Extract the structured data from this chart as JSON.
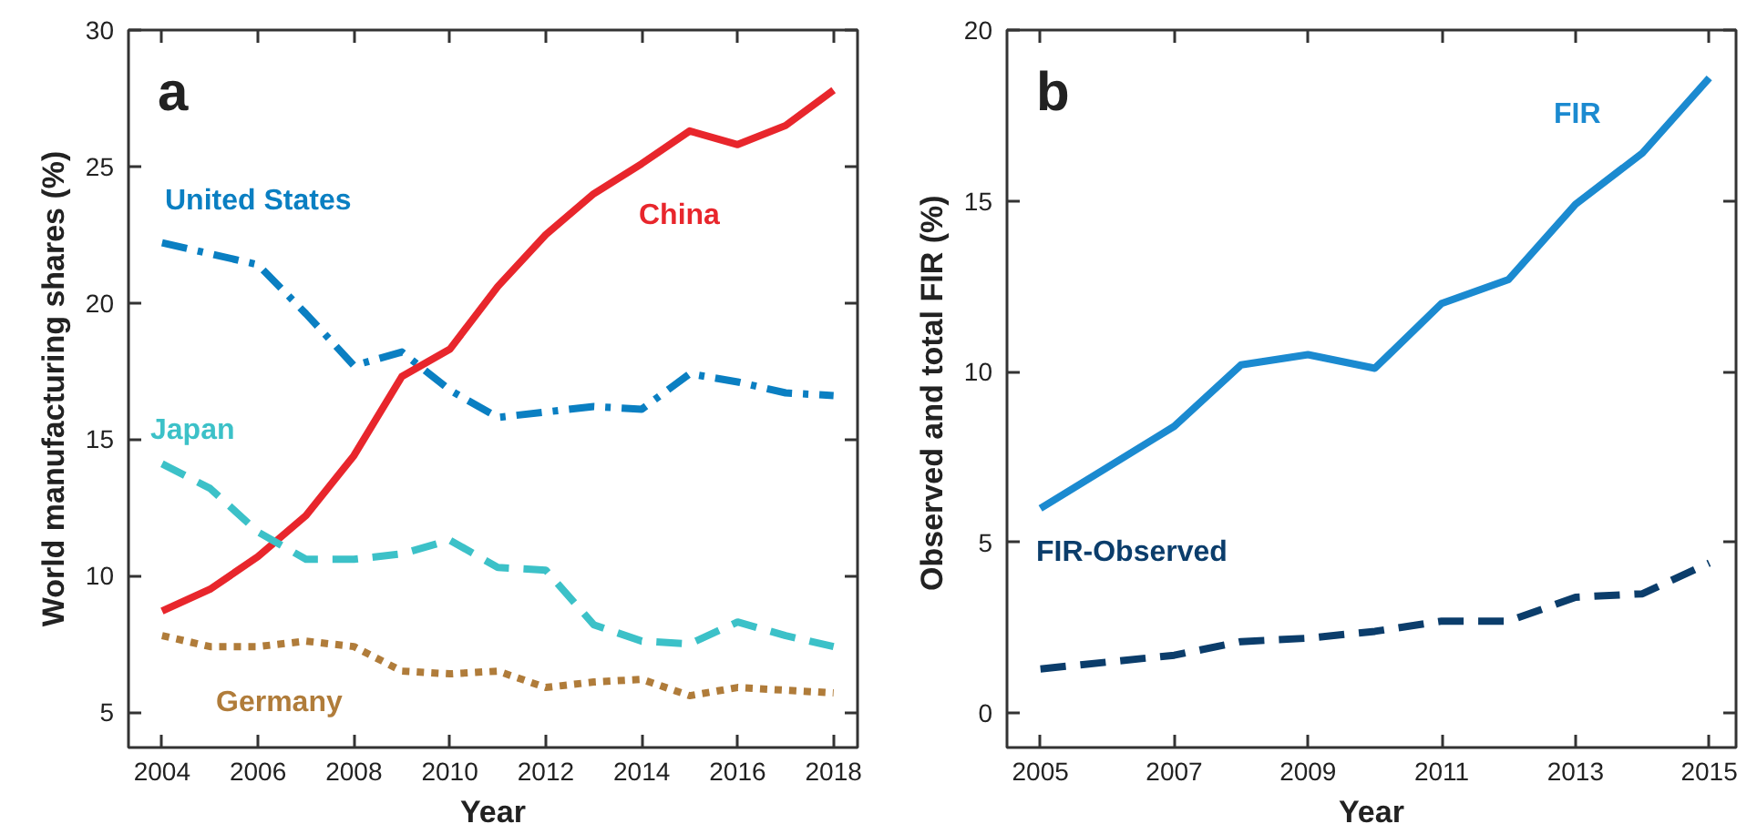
{
  "chart_data": [
    {
      "type": "line",
      "title": "a",
      "xlabel": "Year",
      "ylabel": "World manufacturing shares (%)",
      "x": [
        2004,
        2005,
        2006,
        2007,
        2008,
        2009,
        2010,
        2011,
        2012,
        2013,
        2014,
        2015,
        2016,
        2017,
        2018
      ],
      "series": [
        {
          "name": "United States",
          "color": "#0a7fc2",
          "line_style": "dashdot",
          "values": [
            22.2,
            21.8,
            21.4,
            19.6,
            17.7,
            18.2,
            16.8,
            15.8,
            16.0,
            16.2,
            16.1,
            17.4,
            17.1,
            16.7,
            16.6
          ]
        },
        {
          "name": "China",
          "color": "#e8262c",
          "line_style": "solid",
          "values": [
            8.7,
            9.5,
            10.7,
            12.2,
            14.4,
            17.3,
            18.3,
            20.6,
            22.5,
            24.0,
            25.1,
            26.3,
            25.8,
            26.5,
            27.8
          ]
        },
        {
          "name": "Japan",
          "color": "#3cc1c8",
          "line_style": "dashed",
          "values": [
            14.1,
            13.2,
            11.6,
            10.6,
            10.6,
            10.8,
            11.3,
            10.3,
            10.2,
            8.2,
            7.6,
            7.5,
            8.3,
            7.8,
            7.4
          ]
        },
        {
          "name": "Germany",
          "color": "#b07c3a",
          "line_style": "dotted",
          "values": [
            7.8,
            7.4,
            7.4,
            7.6,
            7.4,
            6.5,
            6.4,
            6.5,
            5.9,
            6.1,
            6.2,
            5.6,
            5.9,
            5.8,
            5.7
          ]
        }
      ],
      "xlim": [
        2003.3,
        2018.5
      ],
      "ylim": [
        3.7,
        30
      ],
      "xticks": [
        2004,
        2006,
        2008,
        2010,
        2012,
        2014,
        2016,
        2018
      ],
      "yticks": [
        5,
        10,
        15,
        20,
        25,
        30
      ],
      "grid": false,
      "legend": false
    },
    {
      "type": "line",
      "title": "b",
      "xlabel": "Year",
      "ylabel": "Observed and total FIR  (%)",
      "x": [
        2005,
        2006,
        2007,
        2008,
        2009,
        2010,
        2011,
        2012,
        2013,
        2014,
        2015
      ],
      "series": [
        {
          "name": "FIR",
          "color": "#1b8ad0",
          "line_style": "solid",
          "values": [
            6.0,
            7.2,
            8.4,
            10.2,
            10.5,
            10.1,
            12.0,
            12.7,
            14.9,
            16.4,
            18.6
          ]
        },
        {
          "name": "FIR-Observed",
          "color": "#0b3d6b",
          "line_style": "dashed",
          "values": [
            1.3,
            1.5,
            1.7,
            2.1,
            2.2,
            2.4,
            2.7,
            2.7,
            3.4,
            3.5,
            4.4
          ]
        }
      ],
      "xlim": [
        2004.5,
        2015.4
      ],
      "ylim": [
        -1,
        20
      ],
      "xticks": [
        2005,
        2007,
        2009,
        2011,
        2013,
        2015
      ],
      "yticks": [
        0,
        5,
        10,
        15,
        20
      ],
      "grid": false,
      "legend": false
    }
  ]
}
